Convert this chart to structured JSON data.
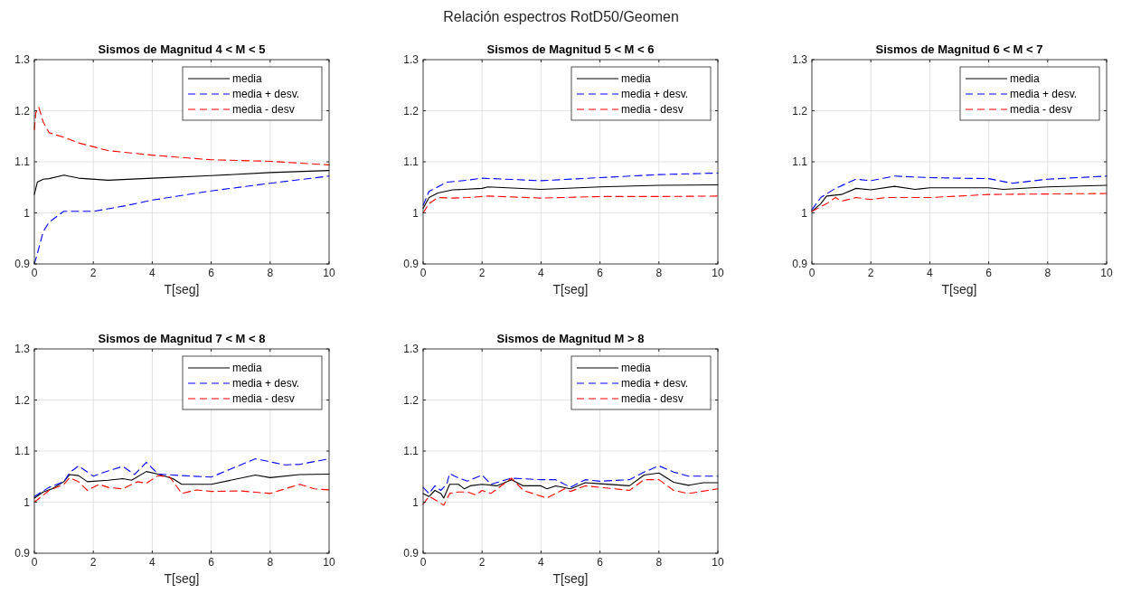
{
  "chart_data": [
    {
      "type": "line",
      "title": "Sismos de Magnitud 4 < M < 5",
      "xlabel": "T[seg]",
      "xlim": [
        0,
        10
      ],
      "ylim": [
        0.9,
        1.3
      ],
      "xticks": [
        0,
        2,
        4,
        6,
        8,
        10
      ],
      "yticks": [
        0.9,
        1,
        1.1,
        1.2,
        1.3
      ],
      "grid": true,
      "legend": "top right",
      "annotations": [
        "Relación espectros RotD50/Geomen"
      ],
      "series": [
        {
          "name": "media",
          "color": "#000000",
          "line_style": "solid",
          "x": [
            0,
            0.1,
            0.3,
            0.5,
            1,
            1.5,
            2.5,
            4,
            6,
            8,
            10
          ],
          "values": [
            1.036,
            1.06,
            1.066,
            1.067,
            1.074,
            1.068,
            1.064,
            1.068,
            1.073,
            1.079,
            1.083
          ]
        },
        {
          "name": "media + desv.",
          "color": "#0000ff",
          "line_style": "dashed",
          "x": [
            0,
            0.1,
            0.3,
            0.5,
            1,
            2,
            3,
            4,
            6,
            8,
            10
          ],
          "values": [
            0.9,
            0.92,
            0.963,
            0.982,
            1.003,
            1.003,
            1.013,
            1.025,
            1.043,
            1.058,
            1.072
          ]
        },
        {
          "name": "media - desv",
          "color": "#ff0000",
          "line_style": "dashed",
          "x": [
            0,
            0.05,
            0.15,
            0.3,
            0.5,
            1,
            1.5,
            2.5,
            4,
            6,
            8,
            10
          ],
          "values": [
            1.163,
            1.196,
            1.207,
            1.178,
            1.157,
            1.148,
            1.137,
            1.122,
            1.113,
            1.104,
            1.101,
            1.094
          ]
        }
      ]
    },
    {
      "type": "line",
      "title": "Sismos de Magnitud 5 < M < 6",
      "xlabel": "T[seg]",
      "xlim": [
        0,
        10
      ],
      "ylim": [
        0.9,
        1.3
      ],
      "xticks": [
        0,
        2,
        4,
        6,
        8,
        10
      ],
      "yticks": [
        0.9,
        1,
        1.1,
        1.2,
        1.3
      ],
      "grid": true,
      "legend": "top right",
      "series": [
        {
          "name": "media",
          "color": "#000000",
          "line_style": "solid",
          "x": [
            0,
            0.2,
            0.5,
            1,
            2,
            2.2,
            4,
            6,
            8,
            10
          ],
          "values": [
            1.009,
            1.03,
            1.039,
            1.045,
            1.048,
            1.051,
            1.046,
            1.051,
            1.054,
            1.055
          ]
        },
        {
          "name": "media + desv.",
          "color": "#0000ff",
          "line_style": "dashed",
          "x": [
            0,
            0.2,
            0.5,
            0.8,
            1.5,
            2,
            4,
            6,
            8,
            10
          ],
          "values": [
            1.015,
            1.042,
            1.051,
            1.06,
            1.064,
            1.068,
            1.063,
            1.069,
            1.075,
            1.078
          ]
        },
        {
          "name": "media - desv",
          "color": "#ff0000",
          "line_style": "dashed",
          "x": [
            0,
            0.2,
            0.5,
            1,
            1.5,
            2.2,
            4,
            6,
            8,
            10
          ],
          "values": [
            1.0,
            1.018,
            1.03,
            1.029,
            1.03,
            1.033,
            1.029,
            1.032,
            1.032,
            1.033
          ]
        }
      ]
    },
    {
      "type": "line",
      "title": "Sismos de Magnitud 6 < M < 7",
      "xlabel": "T[seg]",
      "xlim": [
        0,
        10
      ],
      "ylim": [
        0.9,
        1.3
      ],
      "xticks": [
        0,
        2,
        4,
        6,
        8,
        10
      ],
      "yticks": [
        0.9,
        1,
        1.1,
        1.2,
        1.3
      ],
      "grid": true,
      "legend": "top right",
      "series": [
        {
          "name": "media",
          "color": "#000000",
          "line_style": "solid",
          "x": [
            0,
            0.3,
            0.5,
            1,
            1.5,
            2,
            2.8,
            3.5,
            4,
            6,
            6.5,
            8,
            10
          ],
          "values": [
            1.003,
            1.018,
            1.033,
            1.036,
            1.048,
            1.045,
            1.052,
            1.046,
            1.049,
            1.049,
            1.046,
            1.051,
            1.054
          ]
        },
        {
          "name": "media + desv.",
          "color": "#0000ff",
          "line_style": "dashed",
          "x": [
            0,
            0.3,
            0.8,
            1.5,
            2,
            2.8,
            4,
            6,
            6.8,
            8,
            10
          ],
          "values": [
            1.006,
            1.03,
            1.048,
            1.066,
            1.063,
            1.072,
            1.069,
            1.067,
            1.058,
            1.066,
            1.072
          ]
        },
        {
          "name": "media - desv",
          "color": "#ff0000",
          "line_style": "dashed",
          "x": [
            0,
            0.5,
            0.8,
            1,
            1.5,
            2,
            2.5,
            3.5,
            4,
            6,
            8,
            10
          ],
          "values": [
            1.003,
            1.018,
            1.03,
            1.023,
            1.03,
            1.026,
            1.03,
            1.03,
            1.03,
            1.036,
            1.037,
            1.038
          ]
        }
      ]
    },
    {
      "type": "line",
      "title": "Sismos de Magnitud 7 < M < 8",
      "xlabel": "T[seg]",
      "xlim": [
        0,
        10
      ],
      "ylim": [
        0.9,
        1.3
      ],
      "xticks": [
        0,
        2,
        4,
        6,
        8,
        10
      ],
      "yticks": [
        0.9,
        1,
        1.1,
        1.2,
        1.3
      ],
      "grid": true,
      "legend": "top right",
      "series": [
        {
          "name": "media",
          "color": "#000000",
          "line_style": "solid",
          "x": [
            0,
            0.3,
            0.6,
            1,
            1.2,
            1.5,
            1.8,
            2.5,
            3,
            3.3,
            3.8,
            4.2,
            4.7,
            5,
            6,
            7.5,
            8,
            9,
            10
          ],
          "values": [
            1.008,
            1.02,
            1.026,
            1.04,
            1.054,
            1.052,
            1.04,
            1.043,
            1.046,
            1.043,
            1.06,
            1.055,
            1.046,
            1.035,
            1.035,
            1.053,
            1.048,
            1.054,
            1.055
          ]
        },
        {
          "name": "media + desv.",
          "color": "#0000ff",
          "line_style": "dashed",
          "x": [
            0,
            0.5,
            1,
            1.2,
            1.5,
            2,
            2.5,
            3,
            3.4,
            3.8,
            4.2,
            5,
            6,
            7.5,
            8,
            8.5,
            9,
            10
          ],
          "values": [
            1.011,
            1.029,
            1.04,
            1.058,
            1.071,
            1.051,
            1.061,
            1.07,
            1.054,
            1.078,
            1.055,
            1.052,
            1.049,
            1.085,
            1.079,
            1.073,
            1.074,
            1.085
          ]
        },
        {
          "name": "media - desv",
          "color": "#ff0000",
          "line_style": "dashed",
          "x": [
            0,
            0.5,
            1,
            1.2,
            1.5,
            1.8,
            2.2,
            2.5,
            3,
            3.5,
            3.8,
            4.2,
            4.6,
            5,
            5.5,
            6,
            7,
            8,
            9,
            9.5,
            10
          ],
          "values": [
            1.0,
            1.023,
            1.035,
            1.048,
            1.04,
            1.023,
            1.035,
            1.029,
            1.026,
            1.04,
            1.037,
            1.052,
            1.049,
            1.017,
            1.024,
            1.021,
            1.022,
            1.017,
            1.035,
            1.026,
            1.024
          ]
        }
      ]
    },
    {
      "type": "line",
      "title": "Sismos de Magnitud M > 8",
      "xlabel": "T[seg]",
      "xlim": [
        0,
        10
      ],
      "ylim": [
        0.9,
        1.3
      ],
      "xticks": [
        0,
        2,
        4,
        6,
        8,
        10
      ],
      "yticks": [
        0.9,
        1,
        1.1,
        1.2,
        1.3
      ],
      "grid": true,
      "legend": "top right",
      "series": [
        {
          "name": "media",
          "color": "#000000",
          "line_style": "solid",
          "x": [
            0,
            0.2,
            0.4,
            0.6,
            0.7,
            0.9,
            1.2,
            1.4,
            1.6,
            2,
            2.5,
            3,
            3.4,
            4,
            4.2,
            4.5,
            5,
            5.5,
            6,
            7,
            7.5,
            8,
            8.5,
            9,
            9.5,
            10
          ],
          "values": [
            1.017,
            1.011,
            1.023,
            1.017,
            1.008,
            1.035,
            1.035,
            1.026,
            1.032,
            1.035,
            1.032,
            1.044,
            1.032,
            1.032,
            1.026,
            1.032,
            1.026,
            1.038,
            1.036,
            1.032,
            1.053,
            1.057,
            1.039,
            1.033,
            1.038,
            1.038
          ]
        },
        {
          "name": "media + desv.",
          "color": "#0000ff",
          "line_style": "dashed",
          "x": [
            0,
            0.2,
            0.4,
            0.6,
            0.8,
            0.9,
            1.1,
            1.5,
            2,
            2.3,
            3,
            4,
            4.5,
            5,
            5.5,
            6,
            7,
            7.5,
            8,
            8.5,
            9,
            10
          ],
          "values": [
            1.029,
            1.017,
            1.032,
            1.023,
            1.035,
            1.056,
            1.05,
            1.041,
            1.053,
            1.035,
            1.047,
            1.044,
            1.044,
            1.029,
            1.044,
            1.041,
            1.044,
            1.059,
            1.071,
            1.059,
            1.051,
            1.051
          ]
        },
        {
          "name": "media - desv",
          "color": "#ff0000",
          "line_style": "dashed",
          "x": [
            0,
            0.2,
            0.4,
            0.7,
            0.9,
            1.2,
            1.5,
            1.8,
            2,
            2.3,
            3,
            3.4,
            4.2,
            4.8,
            5,
            5.5,
            6,
            7,
            7.5,
            8,
            8.5,
            9,
            10
          ],
          "values": [
            0.996,
            1.011,
            1.005,
            0.994,
            1.017,
            1.02,
            1.02,
            1.014,
            1.023,
            1.017,
            1.047,
            1.023,
            1.008,
            1.026,
            1.021,
            1.032,
            1.029,
            1.023,
            1.044,
            1.044,
            1.023,
            1.017,
            1.026
          ]
        }
      ]
    }
  ]
}
